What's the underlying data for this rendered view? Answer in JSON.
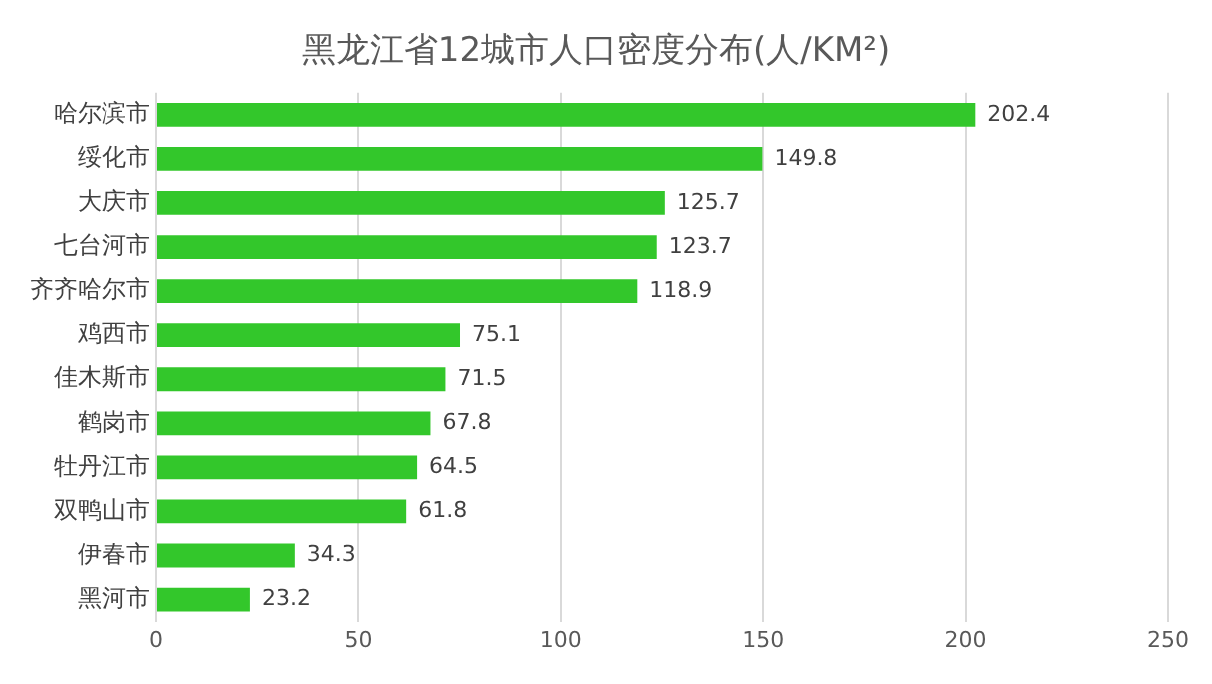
{
  "chart_data": {
    "type": "bar",
    "orientation": "horizontal",
    "title": "黑龙江省12城市人口密度分布(人/KM²)",
    "categories": [
      "哈尔滨市",
      "绥化市",
      "大庆市",
      "七台河市",
      "齐齐哈尔市",
      "鸡西市",
      "佳木斯市",
      "鹤岗市",
      "牡丹江市",
      "双鸭山市",
      "伊春市",
      "黑河市"
    ],
    "values": [
      202.4,
      149.8,
      125.7,
      123.7,
      118.9,
      75.1,
      71.5,
      67.8,
      64.5,
      61.8,
      34.3,
      23.2
    ],
    "color": "#33c72b",
    "xlim": [
      0,
      250
    ],
    "xticks": [
      0,
      50,
      100,
      150,
      200,
      250
    ],
    "grid": "x",
    "data_labels": true
  }
}
